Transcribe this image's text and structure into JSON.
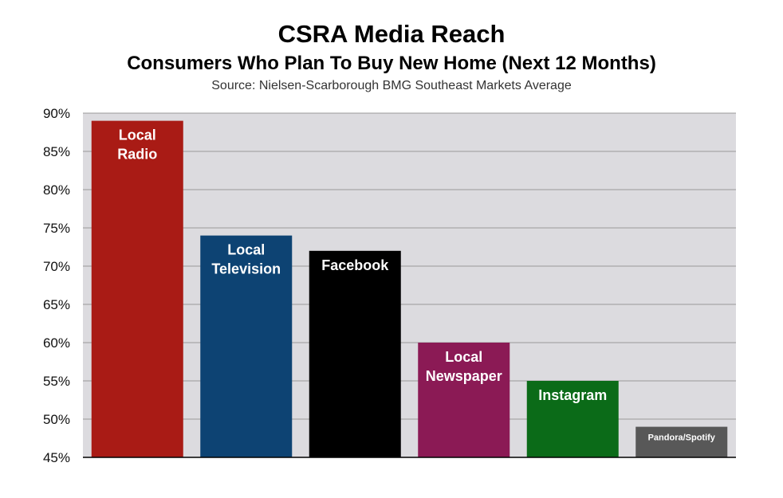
{
  "chart_data": {
    "type": "bar",
    "title": "CSRA Media Reach",
    "subtitle": "Consumers Who Plan To Buy New Home (Next 12 Months)",
    "source": "Source: Nielsen-Scarborough BMG Southeast Markets Average",
    "xlabel": "",
    "ylabel": "",
    "ylim": [
      45,
      90
    ],
    "yticks": [
      "90%",
      "85%",
      "80%",
      "75%",
      "70%",
      "65%",
      "60%",
      "55%",
      "50%",
      "45%"
    ],
    "ytick_values": [
      90,
      85,
      80,
      75,
      70,
      65,
      60,
      55,
      50,
      45
    ],
    "grid": true,
    "legend": "none",
    "categories": [
      {
        "label_lines": [
          "Local",
          "Radio"
        ],
        "value": 89,
        "color": "#a91b15"
      },
      {
        "label_lines": [
          "Local",
          "Television"
        ],
        "value": 74,
        "color": "#0d4373"
      },
      {
        "label_lines": [
          "Facebook"
        ],
        "value": 72,
        "color": "#000000"
      },
      {
        "label_lines": [
          "Local",
          "Newspaper"
        ],
        "value": 60,
        "color": "#8b1a55"
      },
      {
        "label_lines": [
          "Instagram"
        ],
        "value": 55,
        "color": "#0b6b18"
      },
      {
        "label_lines": [
          "Pandora/Spotify"
        ],
        "value": 49,
        "color": "#585858"
      }
    ],
    "plot_background": "#dcdbdf"
  }
}
